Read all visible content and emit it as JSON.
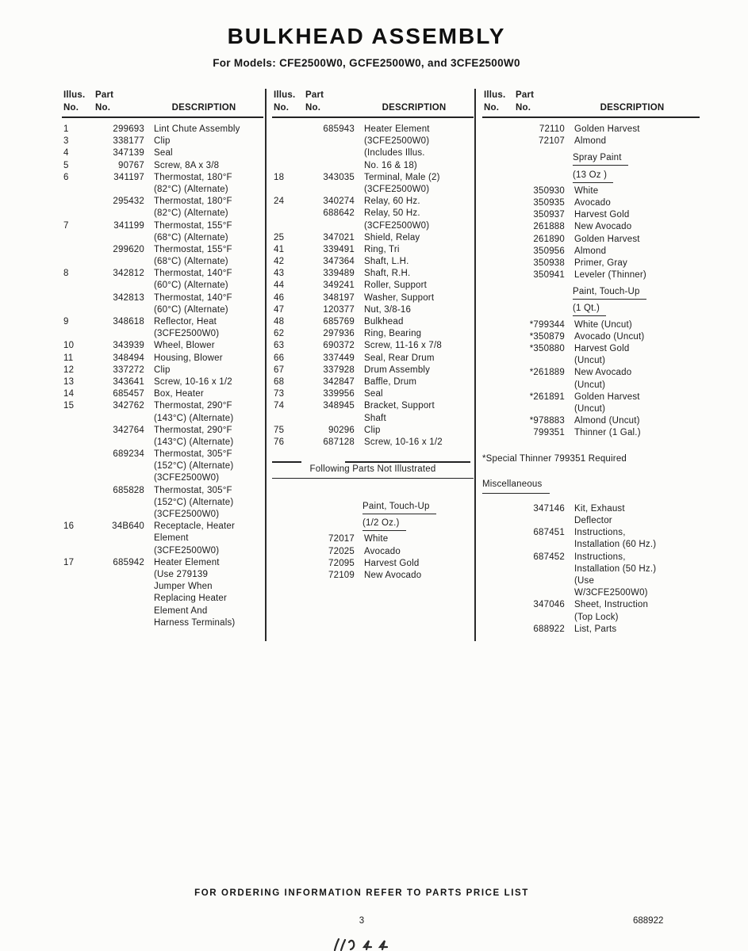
{
  "page": {
    "title": "BULKHEAD ASSEMBLY",
    "subtitle": "For Models: CFE2500W0, GCFE2500W0, and 3CFE2500W0"
  },
  "footer": {
    "ordering_note": "FOR ORDERING INFORMATION REFER TO PARTS PRICE LIST",
    "page_number": "3",
    "doc_number": "688922"
  },
  "table": {
    "headers": {
      "illus_line1": "Illus.",
      "illus_line2": "No.",
      "part_line1": "Part",
      "part_line2": "No.",
      "description": "DESCRIPTION"
    },
    "columns": [
      [
        {
          "i": "1",
          "p": "299693",
          "d": "Lint Chute Assembly"
        },
        {
          "i": "3",
          "p": "338177",
          "d": "Clip"
        },
        {
          "i": "4",
          "p": "347139",
          "d": "Seal"
        },
        {
          "i": "5",
          "p": "90767",
          "d": "Screw, 8A x 3/8"
        },
        {
          "i": "6",
          "p": "341197",
          "d": "Thermostat, 180°F"
        },
        {
          "d": "(82°C) (Alternate)"
        },
        {
          "p": "295432",
          "d": "Thermostat, 180°F"
        },
        {
          "d": "(82°C) (Alternate)"
        },
        {
          "i": "7",
          "p": "341199",
          "d": "Thermostat, 155°F"
        },
        {
          "d": "(68°C) (Alternate)"
        },
        {
          "p": "299620",
          "d": "Thermostat, 155°F"
        },
        {
          "d": "(68°C) (Alternate)"
        },
        {
          "i": "8",
          "p": "342812",
          "d": "Thermostat, 140°F"
        },
        {
          "d": "(60°C) (Alternate)"
        },
        {
          "p": "342813",
          "d": "Thermostat, 140°F"
        },
        {
          "d": "(60°C) (Alternate)"
        },
        {
          "i": "9",
          "p": "348618",
          "d": "Reflector, Heat"
        },
        {
          "d": "(3CFE2500W0)"
        },
        {
          "i": "10",
          "p": "343939",
          "d": "Wheel, Blower"
        },
        {
          "i": "11",
          "p": "348494",
          "d": "Housing, Blower"
        },
        {
          "i": "12",
          "p": "337272",
          "d": "Clip"
        },
        {
          "i": "13",
          "p": "343641",
          "d": "Screw, 10-16 x 1/2"
        },
        {
          "i": "14",
          "p": "685457",
          "d": "Box, Heater"
        },
        {
          "i": "15",
          "p": "342762",
          "d": "Thermostat, 290°F"
        },
        {
          "d": "(143°C) (Alternate)"
        },
        {
          "p": "342764",
          "d": "Thermostat, 290°F"
        },
        {
          "d": "(143°C) (Alternate)"
        },
        {
          "p": "689234",
          "d": "Thermostat, 305°F"
        },
        {
          "d": "(152°C) (Alternate)"
        },
        {
          "d": "(3CFE2500W0)"
        },
        {
          "p": "685828",
          "d": "Thermostat, 305°F"
        },
        {
          "d": "(152°C) (Alternate)"
        },
        {
          "d": "(3CFE2500W0)"
        },
        {
          "i": "16",
          "p": "34B640",
          "d": "Receptacle, Heater"
        },
        {
          "d": "Element"
        },
        {
          "d": "(3CFE2500W0)"
        },
        {
          "i": "17",
          "p": "685942",
          "d": "Heater Element"
        },
        {
          "d": "(Use 279139"
        },
        {
          "d": "Jumper When"
        },
        {
          "d": "Replacing Heater"
        },
        {
          "d": "Element And"
        },
        {
          "d": "Harness Terminals)"
        }
      ],
      [
        {
          "p": "685943",
          "d": "Heater Element"
        },
        {
          "d": "(3CFE2500W0)"
        },
        {
          "d": "(Includes Illus."
        },
        {
          "d": "No. 16 & 18)"
        },
        {
          "i": "18",
          "p": "343035",
          "d": "Terminal, Male (2)"
        },
        {
          "d": "(3CFE2500W0)"
        },
        {
          "i": "24",
          "p": "340274",
          "d": "Relay, 60 Hz."
        },
        {
          "p": "688642",
          "d": "Relay, 50 Hz."
        },
        {
          "d": "(3CFE2500W0)"
        },
        {
          "i": "25",
          "p": "347021",
          "d": "Shield, Relay"
        },
        {
          "i": "41",
          "p": "339491",
          "d": "Ring, Tri"
        },
        {
          "i": "42",
          "p": "347364",
          "d": "Shaft, L.H."
        },
        {
          "i": "43",
          "p": "339489",
          "d": "Shaft, R.H."
        },
        {
          "i": "44",
          "p": "349241",
          "d": "Roller, Support"
        },
        {
          "i": "46",
          "p": "348197",
          "d": "Washer, Support"
        },
        {
          "i": "47",
          "p": "120377",
          "d": "Nut, 3/8-16"
        },
        {
          "i": "48",
          "p": "685769",
          "d": "Bulkhead"
        },
        {
          "i": "62",
          "p": "297936",
          "d": "Ring, Bearing"
        },
        {
          "i": "63",
          "p": "690372",
          "d": "Screw, 11-16 x 7/8"
        },
        {
          "i": "66",
          "p": "337449",
          "d": "Seal, Rear Drum"
        },
        {
          "i": "67",
          "p": "337928",
          "d": "Drum Assembly"
        },
        {
          "i": "68",
          "p": "342847",
          "d": "Baffle, Drum"
        },
        {
          "i": "73",
          "p": "339956",
          "d": "Seal"
        },
        {
          "i": "74",
          "p": "348945",
          "d": "Bracket, Support"
        },
        {
          "d": "Shaft"
        },
        {
          "i": "75",
          "p": "90296",
          "d": "Clip"
        },
        {
          "i": "76",
          "p": "687128",
          "d": "Screw, 10-16 x 1/2"
        },
        {
          "t": "nirule",
          "d": "Following Parts Not Illustrated"
        },
        {
          "t": "gap",
          "h": 10
        },
        {
          "t": "sub",
          "d": "Paint, Touch-Up"
        },
        {
          "t": "sub",
          "d": "(1/2 Oz.)"
        },
        {
          "p": "72017",
          "d": "White"
        },
        {
          "p": "72025",
          "d": "Avocado"
        },
        {
          "p": "72095",
          "d": "Harvest Gold"
        },
        {
          "p": "72109",
          "d": "New Avocado"
        }
      ],
      [
        {
          "p": "72110",
          "d": "Golden Harvest"
        },
        {
          "p": "72107",
          "d": "Almond"
        },
        {
          "t": "sub",
          "d": "Spray Paint"
        },
        {
          "t": "sub",
          "d": "(13 Oz )"
        },
        {
          "p": "350930",
          "d": "White"
        },
        {
          "p": "350935",
          "d": "Avocado"
        },
        {
          "p": "350937",
          "d": "Harvest Gold"
        },
        {
          "p": "261888",
          "d": "New Avocado"
        },
        {
          "p": "261890",
          "d": "Golden Harvest"
        },
        {
          "p": "350956",
          "d": "Almond"
        },
        {
          "p": "350938",
          "d": "Primer, Gray"
        },
        {
          "p": "350941",
          "d": "Leveler (Thinner)"
        },
        {
          "t": "sub",
          "d": "Paint, Touch-Up"
        },
        {
          "t": "sub",
          "d": "(1 Qt.)"
        },
        {
          "p": "*799344",
          "d": "White (Uncut)"
        },
        {
          "p": "*350879",
          "d": "Avocado (Uncut)"
        },
        {
          "p": "*350880",
          "d": "Harvest Gold"
        },
        {
          "d": "(Uncut)"
        },
        {
          "p": "*261889",
          "d": "New Avocado"
        },
        {
          "d": "(Uncut)"
        },
        {
          "p": "*261891",
          "d": "Golden Harvest"
        },
        {
          "d": "(Uncut)"
        },
        {
          "p": "*978883",
          "d": "Almond (Uncut)"
        },
        {
          "p": "799351",
          "d": "Thinner (1 Gal.)"
        },
        {
          "t": "gap",
          "h": 6
        },
        {
          "t": "note",
          "d": "*Special Thinner 799351 Required"
        },
        {
          "t": "gap",
          "h": 4
        },
        {
          "t": "note",
          "u": true,
          "d": "Miscellaneous"
        },
        {
          "t": "gap",
          "h": 14
        },
        {
          "p": "347146",
          "d": "Kit, Exhaust"
        },
        {
          "d": "Deflector"
        },
        {
          "p": "687451",
          "d": "Instructions,"
        },
        {
          "d": "Installation (60 Hz.)"
        },
        {
          "p": "687452",
          "d": "Instructions,"
        },
        {
          "d": "Installation (50 Hz.)"
        },
        {
          "d": "(Use"
        },
        {
          "d": "W/3CFE2500W0)"
        },
        {
          "p": "347046",
          "d": "Sheet, Instruction"
        },
        {
          "d": "(Top Lock)"
        },
        {
          "p": "688922",
          "d": "List, Parts"
        }
      ]
    ]
  }
}
